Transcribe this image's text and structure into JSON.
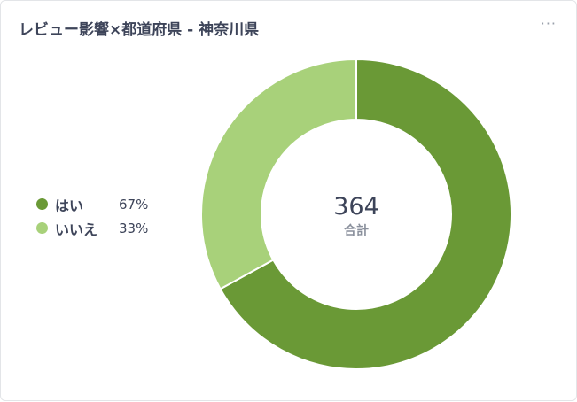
{
  "header": {
    "title": "レビュー影響×都道府県 - 神奈川県",
    "more_icon": "more-horizontal-icon",
    "more_label": "···"
  },
  "chart_data": {
    "type": "pie",
    "categories": [
      "はい",
      "いいえ"
    ],
    "values": [
      67,
      33
    ],
    "percent_labels": [
      "67%",
      "33%"
    ],
    "colors": [
      "#6a9936",
      "#a8d17a"
    ],
    "center_value": "364",
    "center_label": "合計",
    "legend_position": "left"
  }
}
